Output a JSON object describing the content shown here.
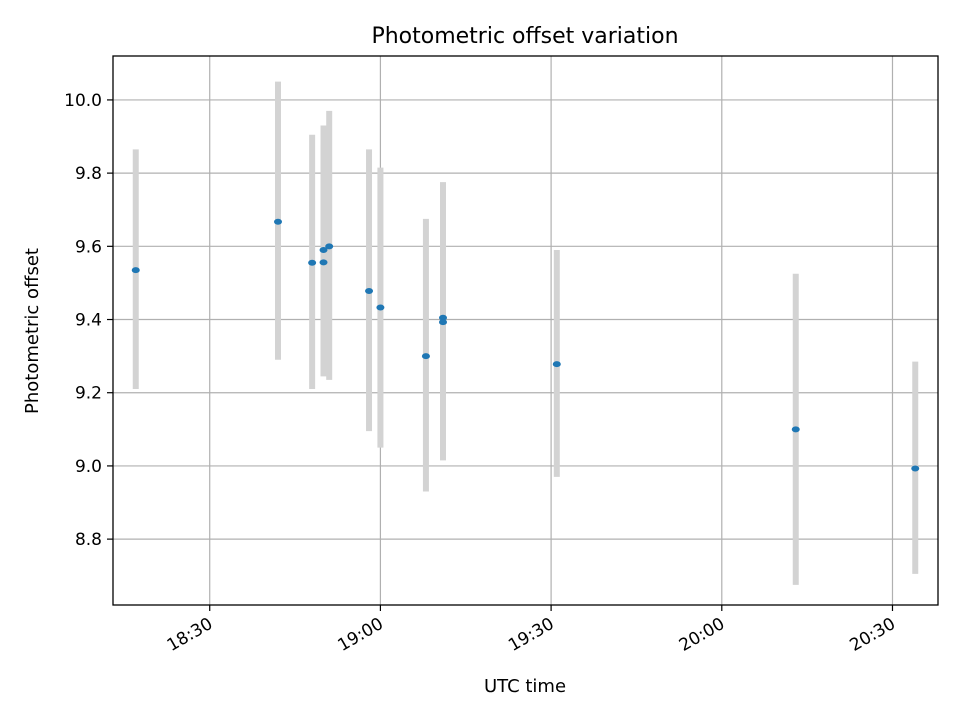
{
  "chart_data": {
    "type": "scatter",
    "title": "Photometric offset variation",
    "xlabel": "UTC time",
    "ylabel": "Photometric offset",
    "xlim": [
      "18:13",
      "20:38"
    ],
    "ylim": [
      8.62,
      10.12
    ],
    "xticks": [
      "18:30",
      "19:00",
      "19:30",
      "20:00",
      "20:30"
    ],
    "yticks": [
      "8.8",
      "9.0",
      "9.2",
      "9.4",
      "9.6",
      "9.8",
      "10.0"
    ],
    "grid": true,
    "points": [
      {
        "x": "18:17",
        "y": 9.535,
        "err_low": 9.21,
        "err_high": 9.865
      },
      {
        "x": "18:42",
        "y": 9.667,
        "err_low": 9.29,
        "err_high": 10.05
      },
      {
        "x": "18:48",
        "y": 9.555,
        "err_low": 9.21,
        "err_high": 9.905
      },
      {
        "x": "18:50",
        "y": 9.556,
        "err_low": 9.245,
        "err_high": 9.875
      },
      {
        "x": "18:50",
        "y": 9.59,
        "err_low": 9.245,
        "err_high": 9.93
      },
      {
        "x": "18:51",
        "y": 9.6,
        "err_low": 9.235,
        "err_high": 9.97
      },
      {
        "x": "18:58",
        "y": 9.478,
        "err_low": 9.095,
        "err_high": 9.865
      },
      {
        "x": "19:00",
        "y": 9.433,
        "err_low": 9.05,
        "err_high": 9.815
      },
      {
        "x": "19:08",
        "y": 9.3,
        "err_low": 8.93,
        "err_high": 9.675
      },
      {
        "x": "19:11",
        "y": 9.405,
        "err_low": 9.035,
        "err_high": 9.775
      },
      {
        "x": "19:11",
        "y": 9.393,
        "err_low": 9.015,
        "err_high": 9.775
      },
      {
        "x": "19:31",
        "y": 9.278,
        "err_low": 8.97,
        "err_high": 9.59
      },
      {
        "x": "20:13",
        "y": 9.1,
        "err_low": 8.675,
        "err_high": 9.525
      },
      {
        "x": "20:34",
        "y": 8.993,
        "err_low": 8.705,
        "err_high": 9.285
      }
    ],
    "marker_color": "#1f77b4",
    "errorbar_color": "#d3d3d3"
  }
}
